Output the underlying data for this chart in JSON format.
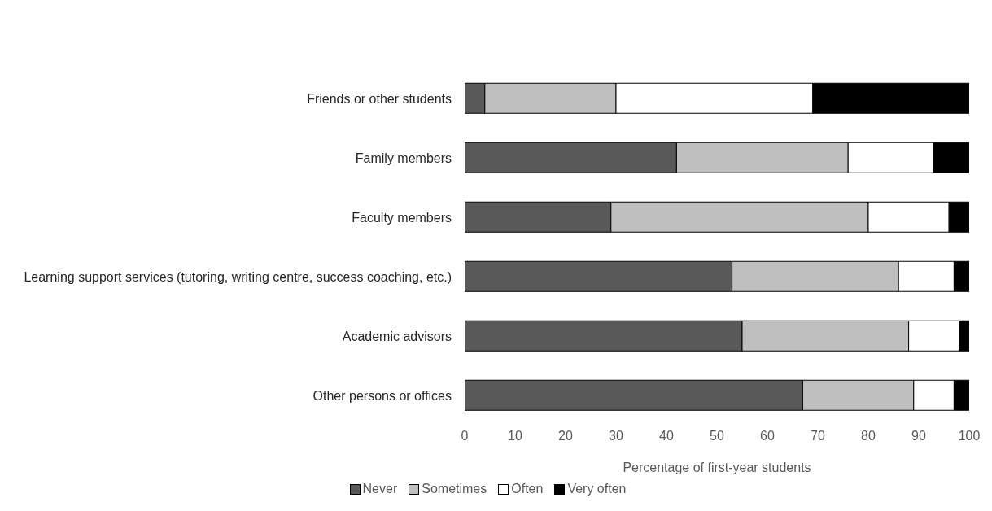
{
  "chart_data": {
    "type": "bar",
    "orientation": "horizontal",
    "stacked": true,
    "xlabel": "Percentage of first-year students",
    "categories": [
      "Friends or other students",
      "Family members",
      "Faculty members",
      "Learning support services (tutoring, writing centre, success coaching, etc.)",
      "Academic advisors",
      "Other persons or offices"
    ],
    "series": [
      {
        "name": "Never",
        "color": "#595959",
        "values": [
          4,
          42,
          29,
          53,
          55,
          67
        ]
      },
      {
        "name": "Sometimes",
        "color": "#bfbfbf",
        "values": [
          26,
          34,
          51,
          33,
          33,
          22
        ]
      },
      {
        "name": "Often",
        "color": "#ffffff",
        "values": [
          39,
          17,
          16,
          11,
          10,
          8
        ]
      },
      {
        "name": "Very often",
        "color": "#000000",
        "values": [
          31,
          7,
          4,
          3,
          2,
          3
        ]
      }
    ],
    "xlim": [
      0,
      100
    ],
    "xticks": [
      0,
      10,
      20,
      30,
      40,
      50,
      60,
      70,
      80,
      90,
      100
    ],
    "grid": false,
    "legend": "bottom"
  }
}
